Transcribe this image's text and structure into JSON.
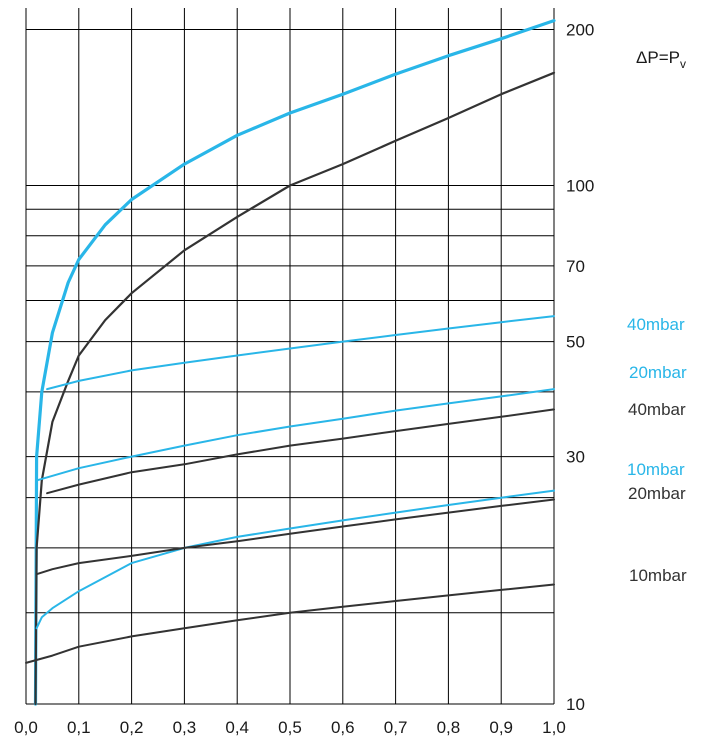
{
  "chart_data": {
    "type": "line",
    "x_ticks": [
      "0,0",
      "0,1",
      "0,2",
      "0,3",
      "0,4",
      "0,5",
      "0,6",
      "0,7",
      "0,8",
      "0,9",
      "1,0"
    ],
    "y_ticks": [
      {
        "value": 10,
        "label": "10"
      },
      {
        "value": 30,
        "label": "30"
      },
      {
        "value": 50,
        "label": "50"
      },
      {
        "value": 70,
        "label": "70"
      },
      {
        "value": 100,
        "label": "100"
      },
      {
        "value": 200,
        "label": "200"
      }
    ],
    "y_gridlines": [
      10,
      15,
      20,
      25,
      30,
      40,
      50,
      60,
      70,
      80,
      90,
      100,
      200
    ],
    "xlim": [
      0,
      1.0
    ],
    "ylim": [
      10,
      220
    ],
    "y_scale": "log",
    "grid": true,
    "header_label": "ΔP=P",
    "header_subscript": "v",
    "colors": {
      "blue": "#29b6e8",
      "black": "#333333",
      "grid": "#000000"
    },
    "series": [
      {
        "name": "ΔP=Pv",
        "color": "blue",
        "width": 3.2,
        "x": [
          0.018,
          0.02,
          0.03,
          0.05,
          0.08,
          0.1,
          0.15,
          0.2,
          0.3,
          0.4,
          0.5,
          0.6,
          0.7,
          0.8,
          0.9,
          1.0
        ],
        "y": [
          10,
          30,
          40,
          52,
          65,
          72,
          84,
          94,
          110,
          125,
          138,
          150,
          164,
          178,
          192,
          208
        ]
      },
      {
        "name": "",
        "color": "black",
        "width": 2.2,
        "x": [
          0.018,
          0.02,
          0.03,
          0.05,
          0.08,
          0.1,
          0.15,
          0.2,
          0.3,
          0.4,
          0.5,
          0.6,
          0.7,
          0.8,
          0.9,
          1.0
        ],
        "y": [
          10,
          20,
          27,
          35,
          42,
          47,
          55,
          62,
          75,
          87,
          100,
          110,
          122,
          135,
          150,
          165
        ]
      },
      {
        "name": "40mbar",
        "color": "blue",
        "width": 2,
        "x": [
          0.04,
          0.1,
          0.2,
          0.3,
          0.4,
          0.5,
          0.6,
          0.7,
          0.8,
          0.9,
          1.0
        ],
        "y": [
          40.5,
          42,
          44,
          45.5,
          47,
          48.5,
          50,
          51.5,
          53,
          54.5,
          56
        ]
      },
      {
        "name": "20mbar",
        "color": "blue",
        "width": 2,
        "x": [
          0.02,
          0.1,
          0.2,
          0.3,
          0.4,
          0.5,
          0.6,
          0.7,
          0.8,
          0.9,
          1.0
        ],
        "y": [
          27,
          28.5,
          30,
          31.5,
          33,
          34.3,
          35.5,
          36.8,
          38,
          39.2,
          40.5
        ]
      },
      {
        "name": "40mbar",
        "color": "black",
        "width": 2,
        "x": [
          0.04,
          0.1,
          0.2,
          0.3,
          0.4,
          0.5,
          0.6,
          0.7,
          0.8,
          0.9,
          1.0
        ],
        "y": [
          25.5,
          26.5,
          28,
          29,
          30.3,
          31.5,
          32.5,
          33.6,
          34.7,
          35.8,
          37
        ]
      },
      {
        "name": "10mbar",
        "color": "blue",
        "width": 2,
        "x": [
          0.02,
          0.03,
          0.05,
          0.1,
          0.2,
          0.3,
          0.4,
          0.5,
          0.6,
          0.7,
          0.8,
          0.9,
          1.0
        ],
        "y": [
          14,
          14.7,
          15.3,
          16.5,
          18.7,
          20,
          21,
          21.8,
          22.6,
          23.4,
          24.2,
          25,
          25.8
        ]
      },
      {
        "name": "20mbar",
        "color": "black",
        "width": 2,
        "x": [
          0.02,
          0.05,
          0.1,
          0.2,
          0.3,
          0.4,
          0.5,
          0.6,
          0.7,
          0.8,
          0.9,
          1.0
        ],
        "y": [
          17.8,
          18.2,
          18.7,
          19.3,
          20,
          20.6,
          21.3,
          22,
          22.7,
          23.4,
          24.1,
          24.8
        ]
      },
      {
        "name": "10mbar",
        "color": "black",
        "width": 2,
        "x": [
          0,
          0.05,
          0.1,
          0.2,
          0.3,
          0.4,
          0.5,
          0.6,
          0.7,
          0.8,
          0.9,
          1.0
        ],
        "y": [
          12,
          12.4,
          12.9,
          13.5,
          14,
          14.5,
          15,
          15.4,
          15.8,
          16.2,
          16.6,
          17
        ]
      }
    ],
    "legend": [
      {
        "text": "40mbar",
        "color": "blue"
      },
      {
        "text": "20mbar",
        "color": "blue"
      },
      {
        "text": "40mbar",
        "color": "black"
      },
      {
        "text": "10mbar",
        "color": "blue"
      },
      {
        "text": "20mbar",
        "color": "black"
      },
      {
        "text": "10mbar",
        "color": "black"
      }
    ]
  }
}
